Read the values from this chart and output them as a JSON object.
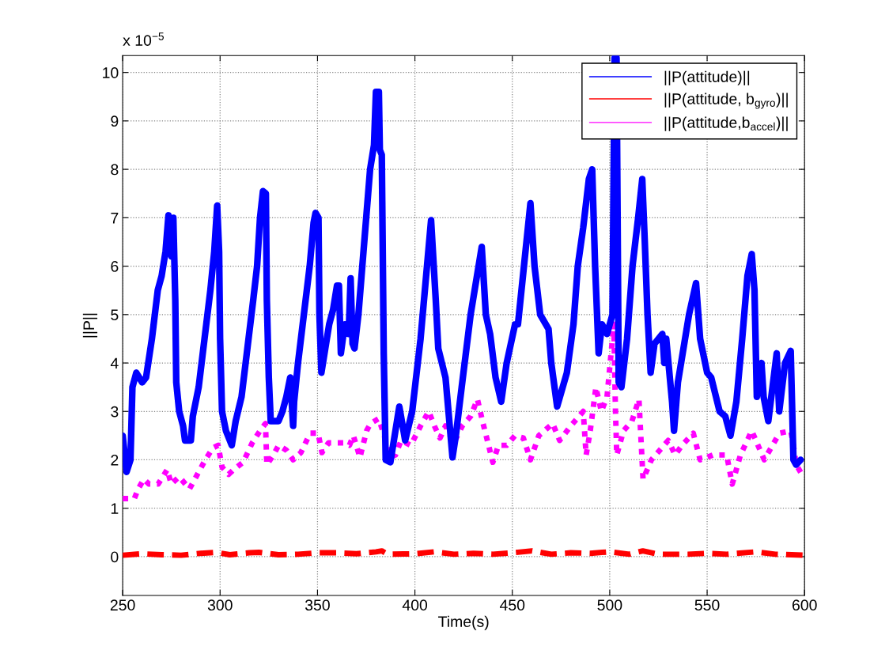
{
  "chart_data": {
    "type": "line",
    "xlabel": "Time(s)",
    "ylabel": "||P||",
    "annotations": [
      "x 10$^{−5}$"
    ],
    "xlim": [
      250,
      600
    ],
    "xticks": [
      250,
      300,
      350,
      400,
      450,
      500,
      550,
      600
    ],
    "ylim": [
      -0.8,
      10.35
    ],
    "yticks": [
      0,
      1,
      2,
      3,
      4,
      5,
      6,
      7,
      8,
      9,
      10
    ],
    "grid": true,
    "legend": "top right",
    "marker": "none",
    "series": [
      {
        "name": "||P(attitude)||",
        "color": "#0000ff",
        "line_style": "solid",
        "x": [
          250,
          252,
          254,
          255,
          257,
          260,
          262,
          265,
          268,
          270,
          272,
          273.5,
          275,
          276,
          277,
          277.5,
          279,
          281,
          282,
          285,
          286,
          289,
          292,
          295,
          297,
          298.5,
          299.5,
          300,
          301,
          303,
          306,
          308,
          311,
          314,
          317,
          319,
          320.5,
          322,
          323.5,
          324,
          325,
          326,
          330,
          332,
          334,
          336,
          337.5,
          338,
          340,
          343,
          346,
          348,
          349,
          350.5,
          351,
          352,
          354,
          356,
          358,
          360,
          361,
          362,
          364,
          366,
          367,
          368,
          369,
          371,
          373,
          375,
          377,
          379,
          380,
          381.5,
          382,
          383,
          384,
          385,
          387.4,
          392,
          395,
          398.6,
          402.9,
          408.3,
          410.7,
          412,
          415.7,
          419.3,
          421,
          424,
          428.6,
          434.3,
          436.4,
          438.6,
          441.4,
          444.3,
          447.1,
          451.4,
          452.9,
          459.3,
          461.4,
          464.3,
          468.6,
          470,
          473,
          478,
          481.4,
          483.6,
          486.4,
          489.3,
          491,
          492.5,
          494.3,
          496,
          498.6,
          501.4,
          502.5,
          503.5,
          504.6,
          506,
          508.9,
          511.7,
          514.6,
          516.7,
          518,
          519.4,
          521,
          523,
          527,
          528,
          529,
          532,
          533,
          535,
          540.7,
          544.3,
          546.4,
          550,
          552.1,
          556.4,
          559.3,
          562,
          565,
          568,
          570.7,
          572.9,
          574.3,
          575.5,
          577.9,
          579,
          581.4,
          585.7,
          587,
          590,
          592.9,
          594.3,
          595.7,
          598
        ],
        "values": [
          2.5,
          1.75,
          2.0,
          3.5,
          3.8,
          3.6,
          3.7,
          4.5,
          5.5,
          5.8,
          6.3,
          7.05,
          6.2,
          7.0,
          5.3,
          3.6,
          3.0,
          2.7,
          2.4,
          2.4,
          2.9,
          3.5,
          4.5,
          5.5,
          6.3,
          7.25,
          6.3,
          4.5,
          3.0,
          2.6,
          2.3,
          2.8,
          3.3,
          4.3,
          5.3,
          6.0,
          7.0,
          7.55,
          7.5,
          5.3,
          3.7,
          2.8,
          2.8,
          3.0,
          3.3,
          3.7,
          2.7,
          3.2,
          4.0,
          5.0,
          6.0,
          6.9,
          7.1,
          7.0,
          5.0,
          3.8,
          4.3,
          4.8,
          5.1,
          5.6,
          5.6,
          4.2,
          4.8,
          4.6,
          5.75,
          4.4,
          4.3,
          5.0,
          6.0,
          7.0,
          8.0,
          8.5,
          9.6,
          9.6,
          8.4,
          8.3,
          4.2,
          2.0,
          1.95,
          3.1,
          2.4,
          3.0,
          4.5,
          6.95,
          5.3,
          4.3,
          3.7,
          2.05,
          2.5,
          3.5,
          5.0,
          6.4,
          5.0,
          4.6,
          3.7,
          3.2,
          4.0,
          4.8,
          4.8,
          7.3,
          6.0,
          5.0,
          4.7,
          4.0,
          3.1,
          3.8,
          4.8,
          6.0,
          6.8,
          7.8,
          8.0,
          6.0,
          4.2,
          4.8,
          4.6,
          5.0,
          10.3,
          10.3,
          3.6,
          3.5,
          4.5,
          6.0,
          7.0,
          7.8,
          6.5,
          5.0,
          3.8,
          4.4,
          4.6,
          4.0,
          4.5,
          3.2,
          2.6,
          3.6,
          5.0,
          5.65,
          4.5,
          3.8,
          3.7,
          3.0,
          2.9,
          2.5,
          3.2,
          4.5,
          5.8,
          6.25,
          5.5,
          3.3,
          4.0,
          3.3,
          2.8,
          4.2,
          3.0,
          4.0,
          4.25,
          2.0,
          1.9,
          2.0
        ]
      },
      {
        "name": "||P(attitude, b$_{gyro}$)||",
        "color": "#ff0000",
        "line_style": "dashed",
        "x": [
          250,
          260,
          270,
          280,
          290,
          298,
          305,
          315,
          320,
          330,
          340,
          350,
          360,
          370,
          380,
          383,
          386,
          400,
          410,
          420,
          430,
          440,
          450,
          460,
          470,
          480,
          490,
          500,
          510,
          517,
          525,
          540,
          550,
          560,
          575,
          585,
          600
        ],
        "values": [
          0.03,
          0.06,
          0.04,
          0.03,
          0.07,
          0.09,
          0.04,
          0.08,
          0.09,
          0.04,
          0.05,
          0.08,
          0.08,
          0.06,
          0.1,
          0.12,
          0.05,
          0.06,
          0.1,
          0.05,
          0.07,
          0.05,
          0.08,
          0.12,
          0.05,
          0.08,
          0.07,
          0.1,
          0.05,
          0.12,
          0.05,
          0.05,
          0.07,
          0.05,
          0.1,
          0.05,
          0.03
        ]
      },
      {
        "name": "||P(attitude,b$_{accel}$)||",
        "color": "#ff00ff",
        "line_style": "dotted",
        "x": [
          250,
          256,
          258,
          260.8,
          263.5,
          268.2,
          272.9,
          274.9,
          279,
          284.3,
          287,
          292.4,
          296.4,
          299,
          301,
          304.4,
          307,
          311.8,
          316.5,
          320.5,
          323.3,
          324,
          327.4,
          330,
          334,
          337.5,
          341.5,
          346.2,
          350.3,
          352.3,
          355.6,
          363.7,
          366.4,
          368.4,
          371.8,
          375.2,
          377.2,
          381.4,
          384.3,
          387.1,
          390,
          392.9,
          397.9,
          402.9,
          407.1,
          410,
          412.9,
          415.7,
          420,
          424.3,
          428.6,
          432.1,
          435,
          440,
          442.9,
          447.1,
          451.4,
          455.7,
          459.3,
          463.6,
          470.7,
          474.3,
          480,
          486.4,
          487.9,
          490,
          492.9,
          495.7,
          498.6,
          502.1,
          502.9,
          503.6,
          507.1,
          511.4,
          515,
          517.1,
          521.4,
          530,
          533.6,
          537.1,
          542.9,
          546.4,
          552.9,
          560,
          562.9,
          567.1,
          572.9,
          579.3,
          587.1,
          592.9,
          594.3,
          595.7,
          598.6
        ],
        "values": [
          1.2,
          1.2,
          1.4,
          1.6,
          1.5,
          1.5,
          1.8,
          1.5,
          1.65,
          1.4,
          1.6,
          2.0,
          2.25,
          2.3,
          1.85,
          1.7,
          1.8,
          1.95,
          2.35,
          2.6,
          2.75,
          1.9,
          2.1,
          2.3,
          2.2,
          2.0,
          2.15,
          2.55,
          2.55,
          2.15,
          2.35,
          2.35,
          2.3,
          2.5,
          2.05,
          2.6,
          2.75,
          2.85,
          2.5,
          2.05,
          2.1,
          2.4,
          2.3,
          2.7,
          3.0,
          2.7,
          2.45,
          2.7,
          2.35,
          2.7,
          2.9,
          3.25,
          2.75,
          1.95,
          2.3,
          2.3,
          2.5,
          2.45,
          2.0,
          2.5,
          2.75,
          2.4,
          2.7,
          3.0,
          2.1,
          2.6,
          3.5,
          3.0,
          3.3,
          4.8,
          3.1,
          2.1,
          2.6,
          2.8,
          3.25,
          1.6,
          2.0,
          2.4,
          2.1,
          2.3,
          2.55,
          2.0,
          2.1,
          2.1,
          1.5,
          2.1,
          2.6,
          2.0,
          2.55,
          2.6,
          2.3,
          1.9,
          1.7
        ]
      }
    ]
  }
}
